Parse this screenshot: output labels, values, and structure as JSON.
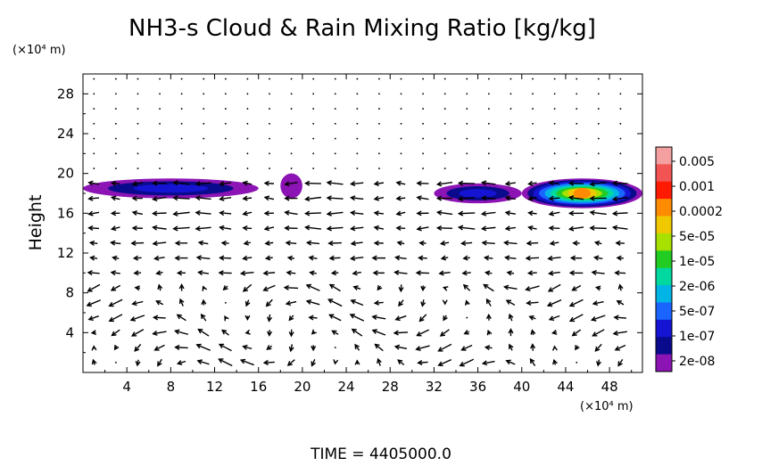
{
  "chart_data": {
    "type": "heatmap",
    "title": "NH3-s Cloud & Rain Mixing Ratio [kg/kg]",
    "ylabel": "Height",
    "y_unit": "(×10⁴ m)",
    "x_unit": "(×10⁴ m)",
    "xlim": [
      0,
      51
    ],
    "ylim": [
      0,
      30
    ],
    "x_ticks": [
      "4",
      "8",
      "12",
      "16",
      "20",
      "24",
      "28",
      "32",
      "36",
      "40",
      "44",
      "48"
    ],
    "y_ticks": [
      "4",
      "8",
      "12",
      "16",
      "20",
      "24",
      "28"
    ],
    "colorbar": {
      "labels": [
        "0.005",
        "0.001",
        "0.0002",
        "5e-05",
        "1e-05",
        "2e-06",
        "5e-07",
        "1e-07",
        "2e-08"
      ],
      "colors": [
        "#f4a0a0",
        "#f25454",
        "#ff1a00",
        "#ff8c00",
        "#f0c800",
        "#a8e000",
        "#22cc22",
        "#00d8a0",
        "#00b4e6",
        "#1a64ff",
        "#1414d2",
        "#0a0a8c",
        "#8c14b4"
      ]
    },
    "cloud_regions": [
      {
        "x": [
          0,
          16
        ],
        "y": [
          17.5,
          19.5
        ],
        "max_level": "1e-07"
      },
      {
        "x": [
          18,
          20
        ],
        "y": [
          17.5,
          20
        ],
        "max_level": "2e-08"
      },
      {
        "x": [
          32,
          40
        ],
        "y": [
          17,
          19
        ],
        "max_level": "1e-07"
      },
      {
        "x": [
          40,
          51
        ],
        "y": [
          16.5,
          19.5
        ],
        "max_level": "0.0002"
      }
    ],
    "time_label": "TIME  =  4405000.0"
  }
}
